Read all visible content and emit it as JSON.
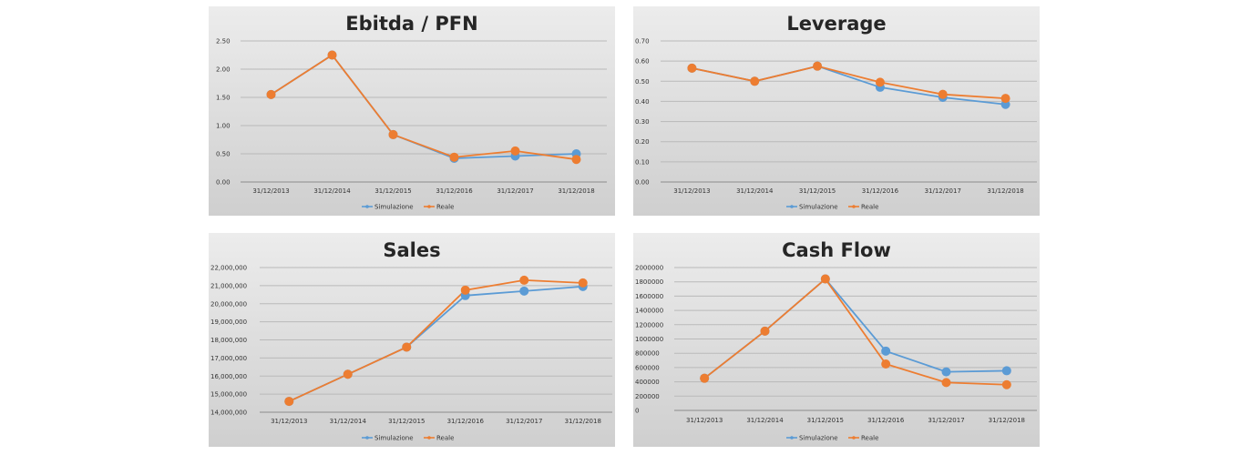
{
  "chart_data": [
    {
      "type": "line",
      "title": "Ebitda / PFN",
      "categories": [
        "31/12/2013",
        "31/12/2014",
        "31/12/2015",
        "31/12/2016",
        "31/12/2017",
        "31/12/2018"
      ],
      "ylim": [
        0,
        2.5
      ],
      "yticks": [
        "0.00",
        "0.50",
        "1.00",
        "1.50",
        "2.00",
        "2.50"
      ],
      "series": [
        {
          "name": "Simulazione",
          "color": "#5b9bd5",
          "values": [
            1.55,
            2.25,
            0.84,
            0.42,
            0.46,
            0.5
          ]
        },
        {
          "name": "Reale",
          "color": "#ed7d31",
          "values": [
            1.55,
            2.25,
            0.84,
            0.44,
            0.55,
            0.4
          ]
        }
      ],
      "legend": "bottom"
    },
    {
      "type": "line",
      "title": "Leverage",
      "categories": [
        "31/12/2013",
        "31/12/2014",
        "31/12/2015",
        "31/12/2016",
        "31/12/2017",
        "31/12/2018"
      ],
      "ylim": [
        0,
        0.7
      ],
      "yticks": [
        "0.00",
        "0.10",
        "0.20",
        "0.30",
        "0.40",
        "0.50",
        "0.60",
        "0.70"
      ],
      "series": [
        {
          "name": "Simulazione",
          "color": "#5b9bd5",
          "values": [
            0.565,
            0.5,
            0.575,
            0.47,
            0.42,
            0.385
          ]
        },
        {
          "name": "Reale",
          "color": "#ed7d31",
          "values": [
            0.565,
            0.5,
            0.575,
            0.495,
            0.435,
            0.415
          ]
        }
      ],
      "legend": "bottom"
    },
    {
      "type": "line",
      "title": "Sales",
      "categories": [
        "31/12/2013",
        "31/12/2014",
        "31/12/2015",
        "31/12/2016",
        "31/12/2017",
        "31/12/2018"
      ],
      "ylim": [
        14000000,
        22000000
      ],
      "yticks": [
        "14,000,000",
        "15,000,000",
        "16,000,000",
        "17,000,000",
        "18,000,000",
        "19,000,000",
        "20,000,000",
        "21,000,000",
        "22,000,000"
      ],
      "series": [
        {
          "name": "Simulazione",
          "color": "#5b9bd5",
          "values": [
            14600000,
            16100000,
            17600000,
            20450000,
            20700000,
            20950000
          ]
        },
        {
          "name": "Reale",
          "color": "#ed7d31",
          "values": [
            14600000,
            16100000,
            17600000,
            20750000,
            21300000,
            21150000
          ]
        }
      ],
      "legend": "bottom"
    },
    {
      "type": "line",
      "title": "Cash Flow",
      "categories": [
        "31/12/2013",
        "31/12/2014",
        "31/12/2015",
        "31/12/2016",
        "31/12/2017",
        "31/12/2018"
      ],
      "ylim": [
        0,
        2000000
      ],
      "yticks": [
        "0",
        "200000",
        "400000",
        "600000",
        "800000",
        "1000000",
        "1200000",
        "1400000",
        "1600000",
        "1800000",
        "2000000"
      ],
      "series": [
        {
          "name": "Simulazione",
          "color": "#5b9bd5",
          "values": [
            450000,
            1110000,
            1840000,
            830000,
            540000,
            555000
          ]
        },
        {
          "name": "Reale",
          "color": "#ed7d31",
          "values": [
            450000,
            1110000,
            1840000,
            650000,
            390000,
            360000
          ]
        }
      ],
      "legend": "bottom"
    }
  ]
}
